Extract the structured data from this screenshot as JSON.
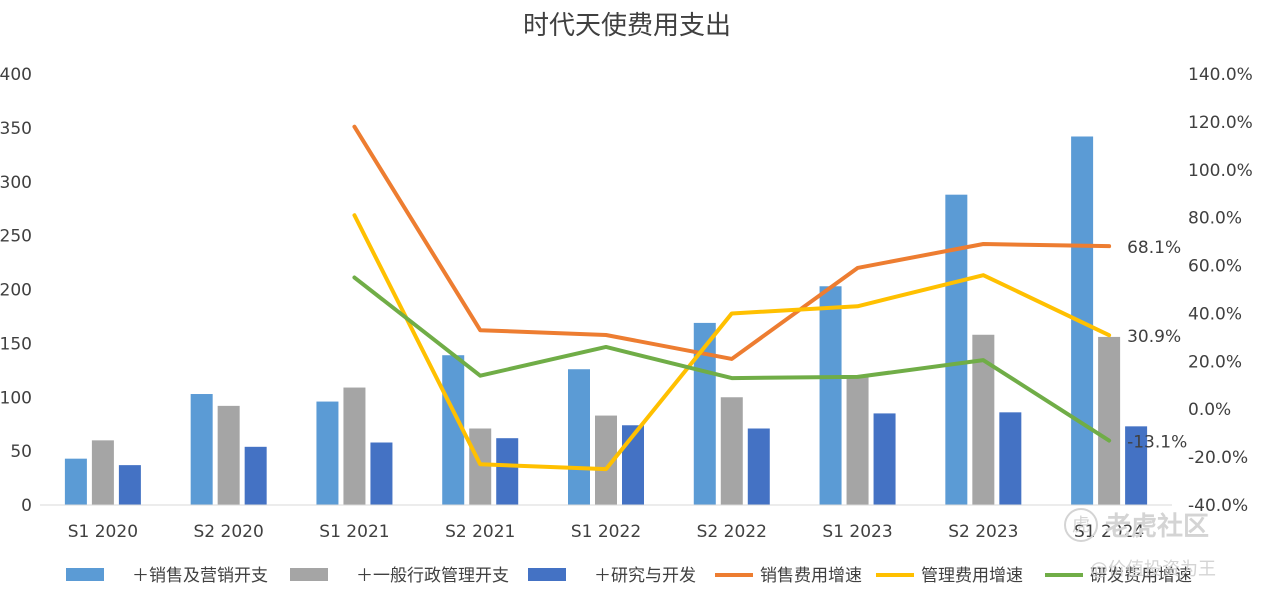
{
  "chart_data": {
    "type": "bar",
    "title": "时代天使费用支出",
    "categories": [
      "S1 2020",
      "S2 2020",
      "S1 2021",
      "S2 2021",
      "S1 2022",
      "S2 2022",
      "S1 2023",
      "S2 2023",
      "S1 2024"
    ],
    "ylim": [
      0,
      400
    ],
    "y_ticks": [
      "0",
      "50",
      "100",
      "150",
      "200",
      "250",
      "300",
      "350",
      "400"
    ],
    "y2lim": [
      -40,
      140
    ],
    "y2_ticks": [
      "-40.0%",
      "-20.0%",
      "0.0%",
      "20.0%",
      "40.0%",
      "60.0%",
      "80.0%",
      "100.0%",
      "120.0%",
      "140.0%"
    ],
    "bar_series": [
      {
        "name": "＋销售及营销开支",
        "color": "#5b9bd5",
        "values": [
          43,
          103,
          96,
          139,
          126,
          169,
          203,
          288,
          342
        ]
      },
      {
        "name": "＋一般行政管理开支",
        "color": "#a5a5a5",
        "values": [
          60,
          92,
          109,
          71,
          83,
          100,
          120,
          158,
          156
        ]
      },
      {
        "name": "＋研究与开发",
        "color": "#4472c4",
        "values": [
          37,
          54,
          58,
          62,
          74,
          71,
          85,
          86,
          73
        ]
      }
    ],
    "line_series": [
      {
        "name": "销售费用增速",
        "color": "#ed7d31",
        "values": [
          null,
          null,
          118,
          33,
          31,
          21,
          59,
          69,
          68.1
        ]
      },
      {
        "name": "管理费用增速",
        "color": "#ffc000",
        "values": [
          null,
          null,
          81,
          -23,
          -25,
          40,
          43,
          56,
          30.9
        ]
      },
      {
        "name": "研发费用增速",
        "color": "#70ad47",
        "values": [
          null,
          null,
          55,
          14,
          26,
          13,
          13.5,
          20.5,
          -13.1
        ]
      }
    ],
    "data_labels": [
      "68.1%",
      "30.9%",
      "-13.1%"
    ],
    "legend_position": "bottom",
    "grid": false
  },
  "watermark": {
    "logo": "虎",
    "brand": "老虎社区",
    "author": "@价值投资为王"
  }
}
